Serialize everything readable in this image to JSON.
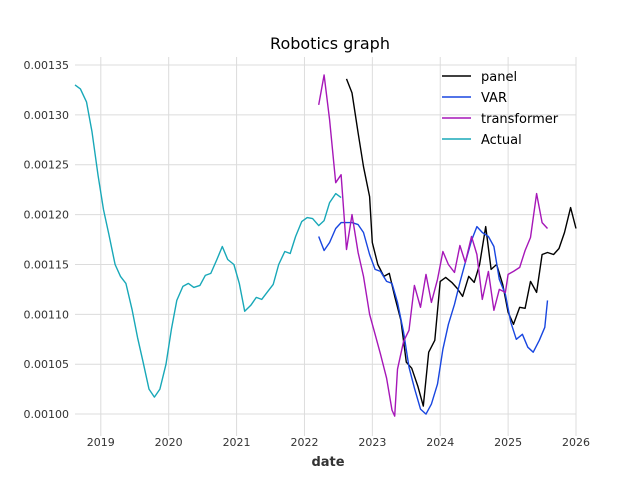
{
  "chart_data": {
    "type": "line",
    "title": "Robotics graph",
    "xlabel": "date",
    "ylabel": "",
    "xlim": [
      2018.62,
      2026.0
    ],
    "ylim": [
      0.000978,
      0.001358
    ],
    "x_ticks": [
      2019,
      2020,
      2021,
      2022,
      2023,
      2024,
      2025,
      2026
    ],
    "x_tick_labels": [
      "2019",
      "2020",
      "2021",
      "2022",
      "2023",
      "2024",
      "2025",
      "2026"
    ],
    "y_ticks": [
      0.001,
      0.00105,
      0.0011,
      0.00115,
      0.0012,
      0.00125,
      0.0013,
      0.00135
    ],
    "y_tick_labels": [
      "0.00100",
      "0.00105",
      "0.00110",
      "0.00115",
      "0.00120",
      "0.00125",
      "0.00130",
      "0.00135"
    ],
    "grid": true,
    "legend_position": "top-right",
    "series": [
      {
        "name": "panel",
        "color": "#000000",
        "x": [
          2022.62,
          2022.7,
          2022.79,
          2022.87,
          2022.96,
          2023.0,
          2023.08,
          2023.17,
          2023.25,
          2023.33,
          2023.42,
          2023.5,
          2023.58,
          2023.67,
          2023.75,
          2023.83,
          2023.92,
          2024.0,
          2024.08,
          2024.17,
          2024.25,
          2024.33,
          2024.42,
          2024.5,
          2024.58,
          2024.67,
          2024.75,
          2024.83,
          2024.92,
          2025.0,
          2025.08,
          2025.17,
          2025.25,
          2025.33,
          2025.42,
          2025.5,
          2025.58,
          2025.67,
          2025.75,
          2025.83,
          2025.92,
          2026.0
        ],
        "y": [
          0.001336,
          0.001322,
          0.001282,
          0.001248,
          0.001218,
          0.001172,
          0.00115,
          0.001138,
          0.001141,
          0.001118,
          0.001094,
          0.001052,
          0.001046,
          0.001028,
          0.001008,
          0.001062,
          0.001074,
          0.001133,
          0.001137,
          0.001132,
          0.001126,
          0.001118,
          0.001138,
          0.001132,
          0.00115,
          0.001188,
          0.001145,
          0.00115,
          0.00113,
          0.001102,
          0.00109,
          0.001107,
          0.001106,
          0.001133,
          0.001122,
          0.00116,
          0.001162,
          0.00116,
          0.001166,
          0.001182,
          0.001207,
          0.001186
        ]
      },
      {
        "name": "VAR",
        "color": "#1846e0",
        "x": [
          2022.21,
          2022.29,
          2022.37,
          2022.46,
          2022.54,
          2022.62,
          2022.7,
          2022.79,
          2022.87,
          2022.96,
          2023.04,
          2023.12,
          2023.21,
          2023.29,
          2023.37,
          2023.46,
          2023.54,
          2023.62,
          2023.71,
          2023.79,
          2023.87,
          2023.96,
          2024.04,
          2024.12,
          2024.21,
          2024.29,
          2024.37,
          2024.46,
          2024.54,
          2024.62,
          2024.71,
          2024.79,
          2024.87,
          2024.96,
          2025.04,
          2025.12,
          2025.21,
          2025.29,
          2025.37,
          2025.46,
          2025.54,
          2025.58
        ],
        "y": [
          0.001178,
          0.001164,
          0.001172,
          0.001186,
          0.001192,
          0.001192,
          0.001192,
          0.00119,
          0.001182,
          0.00116,
          0.001145,
          0.001143,
          0.001133,
          0.001131,
          0.001112,
          0.001082,
          0.001047,
          0.001026,
          0.001005,
          0.001,
          0.00101,
          0.00103,
          0.001065,
          0.00109,
          0.00111,
          0.001132,
          0.001152,
          0.001174,
          0.001188,
          0.001182,
          0.001178,
          0.001168,
          0.001135,
          0.00112,
          0.001092,
          0.001075,
          0.00108,
          0.001067,
          0.001062,
          0.001074,
          0.001087,
          0.001114
        ]
      },
      {
        "name": "transformer",
        "color": "#a617b8",
        "x": [
          2022.21,
          2022.29,
          2022.37,
          2022.46,
          2022.54,
          2022.62,
          2022.7,
          2022.79,
          2022.87,
          2022.96,
          2023.04,
          2023.12,
          2023.21,
          2023.29,
          2023.33,
          2023.37,
          2023.46,
          2023.54,
          2023.62,
          2023.71,
          2023.79,
          2023.87,
          2023.96,
          2024.04,
          2024.12,
          2024.21,
          2024.29,
          2024.37,
          2024.46,
          2024.54,
          2024.62,
          2024.71,
          2024.79,
          2024.87,
          2024.96,
          2025.0,
          2025.08,
          2025.17,
          2025.25,
          2025.33,
          2025.42,
          2025.5,
          2025.58
        ],
        "y": [
          0.00131,
          0.00134,
          0.001295,
          0.001232,
          0.00124,
          0.001165,
          0.0012,
          0.001162,
          0.001138,
          0.0011,
          0.00108,
          0.00106,
          0.001036,
          0.001004,
          0.000998,
          0.001045,
          0.001073,
          0.001084,
          0.001129,
          0.001107,
          0.00114,
          0.001112,
          0.001135,
          0.001163,
          0.00115,
          0.001142,
          0.001169,
          0.001152,
          0.001178,
          0.00116,
          0.001115,
          0.001143,
          0.001104,
          0.001125,
          0.001122,
          0.00114,
          0.001143,
          0.001147,
          0.001164,
          0.001177,
          0.001221,
          0.001192,
          0.001186
        ]
      },
      {
        "name": "Actual",
        "color": "#18a8b8",
        "x": [
          2018.62,
          2018.7,
          2018.79,
          2018.87,
          2018.96,
          2019.04,
          2019.12,
          2019.21,
          2019.29,
          2019.37,
          2019.46,
          2019.54,
          2019.62,
          2019.71,
          2019.79,
          2019.87,
          2019.96,
          2020.04,
          2020.12,
          2020.21,
          2020.29,
          2020.37,
          2020.46,
          2020.54,
          2020.62,
          2020.71,
          2020.79,
          2020.87,
          2020.96,
          2021.04,
          2021.12,
          2021.21,
          2021.29,
          2021.37,
          2021.46,
          2021.54,
          2021.62,
          2021.71,
          2021.79,
          2021.87,
          2021.96,
          2022.04,
          2022.12,
          2022.21,
          2022.29,
          2022.37,
          2022.46,
          2022.54
        ],
        "y": [
          0.00133,
          0.001326,
          0.001313,
          0.001283,
          0.001239,
          0.001205,
          0.00118,
          0.00115,
          0.001138,
          0.001131,
          0.001105,
          0.001077,
          0.001053,
          0.001025,
          0.001017,
          0.001025,
          0.00105,
          0.001085,
          0.001114,
          0.001128,
          0.001131,
          0.001127,
          0.001129,
          0.001139,
          0.001141,
          0.001155,
          0.001168,
          0.001155,
          0.00115,
          0.001131,
          0.001103,
          0.001109,
          0.001117,
          0.001115,
          0.001123,
          0.00113,
          0.00115,
          0.001163,
          0.001161,
          0.001178,
          0.001193,
          0.001197,
          0.001196,
          0.001189,
          0.001194,
          0.001212,
          0.001221,
          0.001217
        ]
      }
    ]
  }
}
